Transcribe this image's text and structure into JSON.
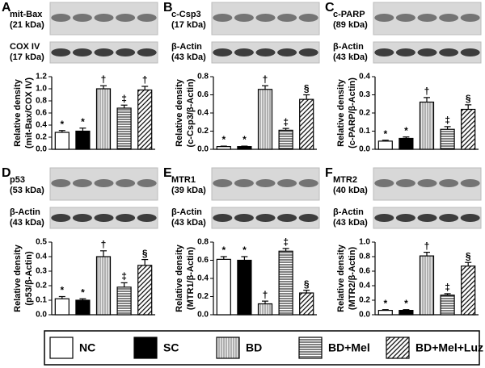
{
  "chart_data": [
    {
      "type": "bar",
      "panel": "A",
      "target": "mit-Bax",
      "target_kda": "(21 kDa)",
      "control": "COX IV",
      "control_kda": "(17 kDa)",
      "ylabel": "Relative density",
      "ylabel2": "(mit-Bax/COX IV)",
      "categories": [
        null,
        null,
        null,
        null,
        null
      ],
      "values": [
        0.28,
        0.3,
        1.0,
        0.68,
        0.98
      ],
      "errors": [
        0.03,
        0.05,
        0.05,
        0.05,
        0.06
      ],
      "symbols": [
        "*",
        "*",
        "†",
        "‡",
        "†"
      ],
      "ylim": [
        0,
        1.2
      ],
      "yticks": [
        {
          "value": 0,
          "label": "0.0"
        },
        {
          "value": 0.2,
          "label": "0.2"
        },
        {
          "value": 0.4,
          "label": "0.4"
        },
        {
          "value": 0.6,
          "label": "0.6"
        },
        {
          "value": 0.8,
          "label": "0.8"
        },
        {
          "value": 1.0,
          "label": "1.0"
        },
        {
          "value": 1.2,
          "label": "1.2"
        }
      ]
    },
    {
      "type": "bar",
      "panel": "B",
      "target": "c-Csp3",
      "target_kda": "(17 kDa)",
      "control": "β-Actin",
      "control_kda": "(43 kDa)",
      "ylabel": "Relative density",
      "ylabel2": "(c-Csp3/β-Actin)",
      "categories": [
        null,
        null,
        null,
        null,
        null
      ],
      "values": [
        0.03,
        0.03,
        0.66,
        0.21,
        0.55
      ],
      "errors": [
        0.005,
        0.005,
        0.04,
        0.02,
        0.05
      ],
      "symbols": [
        "*",
        "*",
        "†",
        "‡",
        "§"
      ],
      "ylim": [
        0,
        0.8
      ],
      "yticks": [
        {
          "value": 0,
          "label": "0.0"
        },
        {
          "value": 0.2,
          "label": "0.2"
        },
        {
          "value": 0.4,
          "label": "0.4"
        },
        {
          "value": 0.6,
          "label": "0.6"
        },
        {
          "value": 0.8,
          "label": "0.8"
        }
      ]
    },
    {
      "type": "bar",
      "panel": "C",
      "target": "c-PARP",
      "target_kda": "(89 kDa)",
      "control": "β-Actin",
      "control_kda": "(43 kDa)",
      "ylabel": "Relative density",
      "ylabel2": "(c-PARP/β-Actin)",
      "categories": [
        null,
        null,
        null,
        null,
        null
      ],
      "values": [
        0.045,
        0.06,
        0.26,
        0.11,
        0.22
      ],
      "errors": [
        0.005,
        0.008,
        0.025,
        0.015,
        0.025
      ],
      "symbols": [
        "*",
        "*",
        "†",
        "‡",
        "§"
      ],
      "ylim": [
        0,
        0.4
      ],
      "yticks": [
        {
          "value": 0,
          "label": "0.0"
        },
        0.1,
        0.2,
        0.3,
        0.4
      ]
    },
    {
      "type": "bar",
      "panel": "D",
      "target": "p53",
      "target_kda": "(53 kDa)",
      "control": "β-Actin",
      "control_kda": "(43 kDa)",
      "ylabel": "Relative density",
      "ylabel2": "(p53/β-Actin)",
      "categories": [
        null,
        null,
        null,
        null,
        null
      ],
      "values": [
        0.11,
        0.1,
        0.4,
        0.19,
        0.34
      ],
      "errors": [
        0.015,
        0.01,
        0.04,
        0.03,
        0.04
      ],
      "symbols": [
        "*",
        "*",
        "†",
        "‡",
        "§"
      ],
      "ylim": [
        0,
        0.5
      ],
      "yticks": [
        {
          "value": 0,
          "label": "0.0"
        },
        0.1,
        0.2,
        0.3,
        0.4,
        0.5
      ]
    },
    {
      "type": "bar",
      "panel": "E",
      "target": "MTR1",
      "target_kda": "(39 kDa)",
      "control": "β-Actin",
      "control_kda": "(43 kDa)",
      "ylabel": "Relative density",
      "ylabel2": "(MTR1/β-Actin)",
      "categories": [
        null,
        null,
        null,
        null,
        null
      ],
      "values": [
        0.61,
        0.6,
        0.12,
        0.7,
        0.24
      ],
      "errors": [
        0.03,
        0.04,
        0.03,
        0.03,
        0.03
      ],
      "symbols": [
        "*",
        "*",
        "†",
        "‡",
        "§"
      ],
      "ylim": [
        0,
        0.8
      ],
      "yticks": [
        {
          "value": 0,
          "label": "0.0"
        },
        0.2,
        0.4,
        0.6,
        0.8
      ]
    },
    {
      "type": "bar",
      "panel": "F",
      "target": "MTR2",
      "target_kda": "(40 kDa)",
      "control": "β-Actin",
      "control_kda": "(43 kDa)",
      "ylabel": "Relative density",
      "ylabel2": "(MTR2/β-Actin)",
      "categories": [
        null,
        null,
        null,
        null,
        null
      ],
      "values": [
        0.06,
        0.06,
        0.81,
        0.27,
        0.67
      ],
      "errors": [
        0.01,
        0.01,
        0.05,
        0.02,
        0.05
      ],
      "symbols": [
        "*",
        "*",
        "†",
        "‡",
        "§"
      ],
      "ylim": [
        0,
        1.0
      ],
      "yticks": [
        {
          "value": 0,
          "label": "0.0"
        },
        0.2,
        0.4,
        0.6,
        0.8,
        {
          "value": 1.0,
          "label": "1.0"
        }
      ]
    }
  ],
  "legend": [
    {
      "name": "NC",
      "pattern": "open"
    },
    {
      "name": "SC",
      "pattern": "solid"
    },
    {
      "name": "BD",
      "pattern": "vertical"
    },
    {
      "name": "BD+Mel",
      "pattern": "horizontal"
    },
    {
      "name": "BD+Mel+Luz",
      "pattern": "diagonal"
    }
  ]
}
